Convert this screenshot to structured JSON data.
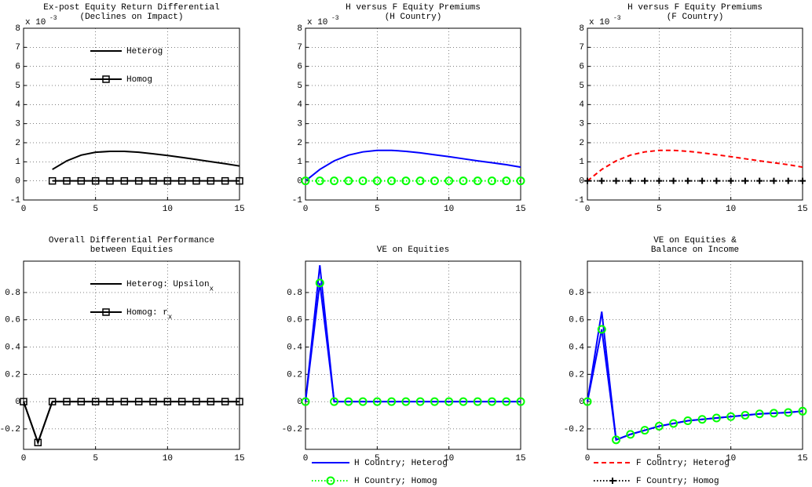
{
  "chart_data": [
    {
      "type": "line",
      "title": [
        "Ex-post Equity Return Differential",
        "(Declines on Impact)"
      ],
      "y_multiplier": "x 10",
      "y_multiplier_exponent": "-3",
      "x": [
        2,
        3,
        4,
        5,
        6,
        7,
        8,
        9,
        10,
        11,
        12,
        13,
        14,
        15
      ],
      "series": [
        {
          "name": "Heterog",
          "color": "#000000",
          "dash": "solid",
          "marker": "none",
          "values": [
            0.6,
            1.05,
            1.35,
            1.5,
            1.55,
            1.55,
            1.5,
            1.42,
            1.33,
            1.23,
            1.12,
            1.01,
            0.9,
            0.78
          ]
        },
        {
          "name": "Homog",
          "color": "#000000",
          "dash": "solid",
          "marker": "square",
          "values": [
            0,
            0,
            0,
            0,
            0,
            0,
            0,
            0,
            0,
            0,
            0,
            0,
            0,
            0
          ]
        }
      ],
      "xlim": [
        0,
        15
      ],
      "ylim": [
        -1,
        8
      ],
      "xticks": [
        0,
        5,
        10,
        15
      ],
      "yticks": [
        -1,
        0,
        1,
        2,
        3,
        4,
        5,
        6,
        7,
        8
      ],
      "grid": true,
      "legend": "inside-top"
    },
    {
      "type": "line",
      "title": [
        "H versus F Equity Premiums",
        "(H Country)"
      ],
      "y_multiplier": "x 10",
      "y_multiplier_exponent": "-3",
      "x": [
        0,
        1,
        2,
        3,
        4,
        5,
        6,
        7,
        8,
        9,
        10,
        11,
        12,
        13,
        14,
        15
      ],
      "series": [
        {
          "name": "H Country; Heterog",
          "color": "#0000ff",
          "dash": "solid",
          "marker": "none",
          "values": [
            0,
            0.6,
            1.05,
            1.35,
            1.52,
            1.6,
            1.6,
            1.55,
            1.47,
            1.37,
            1.27,
            1.16,
            1.05,
            0.95,
            0.85,
            0.72
          ]
        },
        {
          "name": "H Country; Homog",
          "color": "#00ff00",
          "dash": "dotted",
          "marker": "circle",
          "values": [
            0,
            0,
            0,
            0,
            0,
            0,
            0,
            0,
            0,
            0,
            0,
            0,
            0,
            0,
            0,
            0
          ]
        }
      ],
      "xlim": [
        0,
        15
      ],
      "ylim": [
        -1,
        8
      ],
      "xticks": [
        0,
        5,
        10,
        15
      ],
      "yticks": [
        -1,
        0,
        1,
        2,
        3,
        4,
        5,
        6,
        7,
        8
      ],
      "grid": true,
      "legend": "none"
    },
    {
      "type": "line",
      "title": [
        "H versus F Equity Premiums",
        "(F Country)"
      ],
      "y_multiplier": "x 10",
      "y_multiplier_exponent": "-3",
      "x": [
        0,
        1,
        2,
        3,
        4,
        5,
        6,
        7,
        8,
        9,
        10,
        11,
        12,
        13,
        14,
        15
      ],
      "series": [
        {
          "name": "F Country; Heterog",
          "color": "#ff0000",
          "dash": "dashed",
          "marker": "none",
          "values": [
            0,
            0.6,
            1.05,
            1.35,
            1.52,
            1.6,
            1.6,
            1.55,
            1.47,
            1.37,
            1.27,
            1.16,
            1.05,
            0.95,
            0.85,
            0.72
          ]
        },
        {
          "name": "F Country; Homog",
          "color": "#000000",
          "dash": "dotted",
          "marker": "plus",
          "values": [
            0,
            0,
            0,
            0,
            0,
            0,
            0,
            0,
            0,
            0,
            0,
            0,
            0,
            0,
            0,
            0
          ]
        }
      ],
      "xlim": [
        0,
        15
      ],
      "ylim": [
        -1,
        8
      ],
      "xticks": [
        0,
        5,
        10,
        15
      ],
      "yticks": [
        -1,
        0,
        1,
        2,
        3,
        4,
        5,
        6,
        7,
        8
      ],
      "grid": true,
      "legend": "none"
    },
    {
      "type": "line",
      "title": [
        "Overall Differential Performance",
        "between Equities"
      ],
      "x": [
        0,
        1,
        2,
        3,
        4,
        5,
        6,
        7,
        8,
        9,
        10,
        11,
        12,
        13,
        14,
        15
      ],
      "series": [
        {
          "name": "Heterog: Upsilon",
          "name_subscript": "x",
          "color": "#000000",
          "dash": "solid",
          "marker": "none",
          "values": [
            0,
            -0.3,
            0,
            0,
            0,
            0,
            0,
            0,
            0,
            0,
            0,
            0,
            0,
            0,
            0,
            0
          ]
        },
        {
          "name": "Homog: r",
          "name_subscript": "x",
          "color": "#000000",
          "dash": "solid",
          "marker": "square",
          "values": [
            0,
            -0.3,
            0,
            0,
            0,
            0,
            0,
            0,
            0,
            0,
            0,
            0,
            0,
            0,
            0,
            0
          ]
        }
      ],
      "xlim": [
        0,
        15
      ],
      "ylim": [
        -0.35,
        1.03
      ],
      "xticks": [
        0,
        5,
        10,
        15
      ],
      "yticks": [
        -0.2,
        0,
        0.2,
        0.4,
        0.6,
        0.8
      ],
      "grid": true,
      "legend": "inside-top"
    },
    {
      "type": "line",
      "title": [
        "VE on Equities"
      ],
      "x": [
        0,
        1,
        2,
        3,
        4,
        5,
        6,
        7,
        8,
        9,
        10,
        11,
        12,
        13,
        14,
        15
      ],
      "series": [
        {
          "name": "H Country; Heterog",
          "color": "#0000ff",
          "dash": "solid",
          "marker": "none",
          "values": [
            0,
            1.0,
            0,
            0,
            0,
            0,
            0,
            0,
            0,
            0,
            0,
            0,
            0,
            0,
            0,
            0
          ]
        },
        {
          "name": "H Country; Homog",
          "color": "#0000ff",
          "dash": "solid",
          "marker": "circle",
          "marker_color": "#00ff00",
          "legend_color": "#00ff00",
          "legend_dash": "dotted",
          "values": [
            0,
            0.87,
            0,
            0,
            0,
            0,
            0,
            0,
            0,
            0,
            0,
            0,
            0,
            0,
            0,
            0
          ]
        }
      ],
      "xlim": [
        0,
        15
      ],
      "ylim": [
        -0.35,
        1.03
      ],
      "xticks": [
        0,
        5,
        10,
        15
      ],
      "yticks": [
        -0.2,
        0,
        0.2,
        0.4,
        0.6,
        0.8
      ],
      "grid": true,
      "legend": "below"
    },
    {
      "type": "line",
      "title": [
        "VE on Equities &",
        "Balance on Income"
      ],
      "x": [
        0,
        1,
        2,
        3,
        4,
        5,
        6,
        7,
        8,
        9,
        10,
        11,
        12,
        13,
        14,
        15
      ],
      "series": [
        {
          "name": "F Country; Heterog",
          "color": "#0000ff",
          "dash": "solid",
          "marker": "none",
          "legend_color": "#ff0000",
          "legend_dash": "dashed",
          "values": [
            0,
            0.66,
            -0.28,
            -0.24,
            -0.21,
            -0.18,
            -0.16,
            -0.14,
            -0.13,
            -0.12,
            -0.11,
            -0.1,
            -0.09,
            -0.085,
            -0.08,
            -0.07
          ]
        },
        {
          "name": "F Country; Homog",
          "color": "#0000ff",
          "dash": "solid",
          "marker": "circle",
          "marker_color": "#00ff00",
          "legend_color": "#000000",
          "legend_dash": "dotted",
          "legend_marker": "plus",
          "values": [
            0,
            0.53,
            -0.28,
            -0.24,
            -0.21,
            -0.18,
            -0.16,
            -0.14,
            -0.13,
            -0.12,
            -0.11,
            -0.1,
            -0.09,
            -0.085,
            -0.08,
            -0.07
          ]
        }
      ],
      "xlim": [
        0,
        15
      ],
      "ylim": [
        -0.35,
        1.03
      ],
      "xticks": [
        0,
        5,
        10,
        15
      ],
      "yticks": [
        -0.2,
        0,
        0.2,
        0.4,
        0.6,
        0.8
      ],
      "grid": true,
      "legend": "below"
    }
  ]
}
